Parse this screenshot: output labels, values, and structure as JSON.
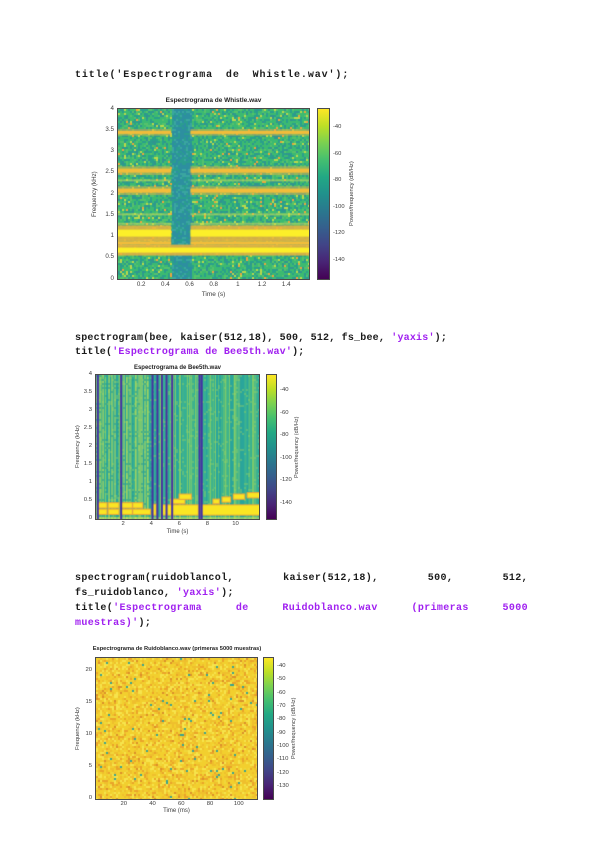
{
  "page": {
    "background": "#ffffff"
  },
  "colors": {
    "code_text": "#1b1b1b",
    "code_string": "#a020f0",
    "axis_text": "#3c3c3c",
    "viridis": [
      "#fde725",
      "#bddf26",
      "#7ad151",
      "#44bf70",
      "#22a884",
      "#21918c",
      "#2a788e",
      "#355f8d",
      "#414487",
      "#482475",
      "#440154"
    ]
  },
  "code_blocks": [
    {
      "lines": [
        {
          "justify": false,
          "tokens": [
            {
              "parts": [
                {
                  "t": "title('Espectrograma de Whistle.wav');",
                  "c": "text"
                }
              ]
            }
          ]
        }
      ]
    },
    {
      "lines": [
        {
          "justify": false,
          "tokens": [
            {
              "parts": [
                {
                  "t": "spectrogram(bee, kaiser(512,18), 500, 512, fs_bee, ",
                  "c": "text"
                },
                {
                  "t": "'yaxis'",
                  "c": "str"
                },
                {
                  "t": ");",
                  "c": "text"
                }
              ]
            }
          ]
        },
        {
          "justify": false,
          "tokens": [
            {
              "parts": [
                {
                  "t": "title(",
                  "c": "text"
                },
                {
                  "t": "'Espectrograma de Bee5th.wav'",
                  "c": "str"
                },
                {
                  "t": ");",
                  "c": "text"
                }
              ]
            }
          ]
        }
      ]
    },
    {
      "lines": [
        {
          "justify": true,
          "tokens": [
            {
              "parts": [
                {
                  "t": "spectrogram(ruidoblancol,",
                  "c": "text"
                }
              ]
            },
            {
              "parts": [
                {
                  "t": "kaiser(512,18),",
                  "c": "text"
                }
              ]
            },
            {
              "parts": [
                {
                  "t": "500,",
                  "c": "text"
                }
              ]
            },
            {
              "parts": [
                {
                  "t": "512,",
                  "c": "text"
                }
              ]
            }
          ]
        },
        {
          "justify": false,
          "tokens": [
            {
              "parts": [
                {
                  "t": "fs_ruidoblanco, ",
                  "c": "text"
                },
                {
                  "t": "'yaxis'",
                  "c": "str"
                },
                {
                  "t": ");",
                  "c": "text"
                }
              ]
            }
          ]
        },
        {
          "justify": true,
          "tokens": [
            {
              "parts": [
                {
                  "t": "title(",
                  "c": "text"
                },
                {
                  "t": "'Espectrograma",
                  "c": "str"
                }
              ]
            },
            {
              "parts": [
                {
                  "t": "de",
                  "c": "str"
                }
              ]
            },
            {
              "parts": [
                {
                  "t": "Ruidoblanco.wav",
                  "c": "str"
                }
              ]
            },
            {
              "parts": [
                {
                  "t": "(primeras",
                  "c": "str"
                }
              ]
            },
            {
              "parts": [
                {
                  "t": "5000",
                  "c": "str"
                }
              ]
            }
          ]
        },
        {
          "justify": false,
          "tokens": [
            {
              "parts": [
                {
                  "t": "muestras)'",
                  "c": "str"
                },
                {
                  "t": ");",
                  "c": "text"
                }
              ]
            }
          ]
        }
      ]
    }
  ],
  "chart_data": [
    {
      "type": "heatmap",
      "style": "whistle",
      "title": "Espectrograma de Whistle.wav",
      "xlabel": "Time (s)",
      "ylabel": "Frequency (kHz)",
      "xlim": [
        0,
        1.58
      ],
      "ylim": [
        0,
        4
      ],
      "xticks": [
        0.2,
        0.4,
        0.6,
        0.8,
        1,
        1.2,
        1.4
      ],
      "yticks": [
        0,
        0.5,
        1,
        1.5,
        2,
        2.5,
        3,
        3.5,
        4
      ],
      "colorbar": {
        "label": "Power/frequency (dB/Hz)",
        "ticks": [
          -40,
          -60,
          -80,
          -100,
          -120,
          -140
        ],
        "range": [
          -25,
          -155
        ]
      },
      "silence_t": [
        0.44,
        0.6
      ],
      "bands": [
        {
          "f": 0.68,
          "h": 5,
          "level": "bright",
          "gap": false
        },
        {
          "f": 0.85,
          "h": 3,
          "level": "medium",
          "gap": true
        },
        {
          "f": 1.08,
          "h": 7,
          "level": "bright",
          "gap": true
        },
        {
          "f": 1.3,
          "h": 2,
          "level": "faint",
          "gap": true
        },
        {
          "f": 1.52,
          "h": 2,
          "level": "faint",
          "gap": true
        },
        {
          "f": 2.08,
          "h": 4,
          "level": "medium",
          "gap": true
        },
        {
          "f": 2.32,
          "h": 2,
          "level": "faint",
          "gap": true
        },
        {
          "f": 2.55,
          "h": 4,
          "level": "medium",
          "gap": true
        },
        {
          "f": 3.45,
          "h": 3,
          "level": "medium",
          "gap": true
        }
      ]
    },
    {
      "type": "heatmap",
      "style": "bee",
      "title": "Espectrograma de Bee5th.wav",
      "xlabel": "Time (s)",
      "ylabel": "Frequency (kHz)",
      "xlim": [
        0,
        11.6
      ],
      "ylim": [
        0,
        4
      ],
      "xticks": [
        2,
        4,
        6,
        8,
        10
      ],
      "yticks": [
        0,
        0.5,
        1,
        1.5,
        2,
        2.5,
        3,
        3.5,
        4
      ],
      "colorbar": {
        "label": "Power/frequency (dB/Hz)",
        "ticks": [
          -40,
          -60,
          -80,
          -100,
          -120,
          -140
        ],
        "range": [
          -25,
          -155
        ]
      },
      "blue_lines_t": [
        0.06,
        1.72,
        3.95,
        4.3,
        4.62,
        4.95,
        5.35,
        7.3,
        7.45
      ],
      "texture_region_t": [
        0,
        3.85
      ],
      "yellow_segments": [
        {
          "t": [
            0.15,
            0.75
          ],
          "f": [
            0.14,
            0.26
          ]
        },
        {
          "t": [
            0.9,
            1.6
          ],
          "f": [
            0.14,
            0.26
          ]
        },
        {
          "t": [
            0.15,
            0.75
          ],
          "f": [
            0.32,
            0.44
          ]
        },
        {
          "t": [
            0.9,
            1.6
          ],
          "f": [
            0.32,
            0.44
          ]
        },
        {
          "t": [
            1.85,
            2.55
          ],
          "f": [
            0.14,
            0.26
          ]
        },
        {
          "t": [
            2.65,
            3.85
          ],
          "f": [
            0.14,
            0.26
          ]
        },
        {
          "t": [
            1.85,
            2.55
          ],
          "f": [
            0.32,
            0.44
          ]
        },
        {
          "t": [
            2.65,
            3.3
          ],
          "f": [
            0.32,
            0.44
          ]
        },
        {
          "t": [
            4.05,
            4.25
          ],
          "f": [
            0.12,
            0.4
          ]
        },
        {
          "t": [
            4.7,
            7.25
          ],
          "f": [
            0.12,
            0.38
          ]
        },
        {
          "t": [
            7.5,
            11.6
          ],
          "f": [
            0.12,
            0.38
          ]
        },
        {
          "t": [
            5.35,
            6.3
          ],
          "f": [
            0.44,
            0.54
          ]
        },
        {
          "t": [
            5.95,
            6.75
          ],
          "f": [
            0.56,
            0.68
          ]
        },
        {
          "t": [
            8.35,
            8.75
          ],
          "f": [
            0.44,
            0.54
          ]
        },
        {
          "t": [
            9.0,
            9.55
          ],
          "f": [
            0.48,
            0.6
          ]
        },
        {
          "t": [
            9.8,
            10.55
          ],
          "f": [
            0.56,
            0.68
          ]
        },
        {
          "t": [
            10.8,
            11.6
          ],
          "f": [
            0.6,
            0.72
          ]
        }
      ]
    },
    {
      "type": "heatmap",
      "style": "white-noise",
      "title": "Espectrograma de Ruidoblanco.wav (primeras 5000 muestras)",
      "xlabel": "Time (ms)",
      "ylabel": "Frequency (kHz)",
      "xlim": [
        0,
        112
      ],
      "ylim": [
        0,
        22.05
      ],
      "xticks": [
        20,
        40,
        60,
        80,
        100
      ],
      "yticks": [
        0,
        5,
        10,
        15,
        20
      ],
      "colorbar": {
        "label": "Power/frequency (dB/Hz)",
        "ticks": [
          -40,
          -50,
          -60,
          -70,
          -80,
          -90,
          -100,
          -110,
          -120,
          -130
        ],
        "range": [
          -33,
          -140
        ]
      }
    }
  ]
}
